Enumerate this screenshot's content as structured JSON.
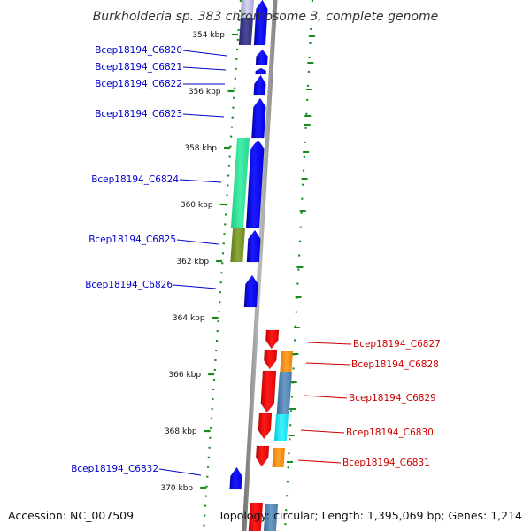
{
  "title": "Burkholderia sp. 383 chromosome 3, complete genome",
  "footer": {
    "accession": "Accession: NC_007509",
    "summary": "Topology: circular; Length: 1,395,069 bp; Genes: 1,214"
  },
  "colors": {
    "forward": "#0000ff",
    "reverse": "#ff0000",
    "backbone": "#999999",
    "tick": "#1a8a1a",
    "forward_label": "#0000cc",
    "reverse_label": "#cc0000"
  },
  "ticks": [
    {
      "label": "354 kbp"
    },
    {
      "label": "356 kbp"
    },
    {
      "label": "358 kbp"
    },
    {
      "label": "360 kbp"
    },
    {
      "label": "362 kbp"
    },
    {
      "label": "364 kbp"
    },
    {
      "label": "366 kbp"
    },
    {
      "label": "368 kbp"
    },
    {
      "label": "370 kbp"
    }
  ],
  "forward_genes": [
    {
      "label": "Bcep18194_C6820"
    },
    {
      "label": "Bcep18194_C6821"
    },
    {
      "label": "Bcep18194_C6822"
    },
    {
      "label": "Bcep18194_C6823"
    },
    {
      "label": "Bcep18194_C6824"
    },
    {
      "label": "Bcep18194_C6825"
    },
    {
      "label": "Bcep18194_C6826"
    },
    {
      "label": "Bcep18194_C6832"
    }
  ],
  "reverse_genes": [
    {
      "label": "Bcep18194_C6827"
    },
    {
      "label": "Bcep18194_C6828"
    },
    {
      "label": "Bcep18194_C6829"
    },
    {
      "label": "Bcep18194_C6830"
    },
    {
      "label": "Bcep18194_C6831"
    }
  ]
}
